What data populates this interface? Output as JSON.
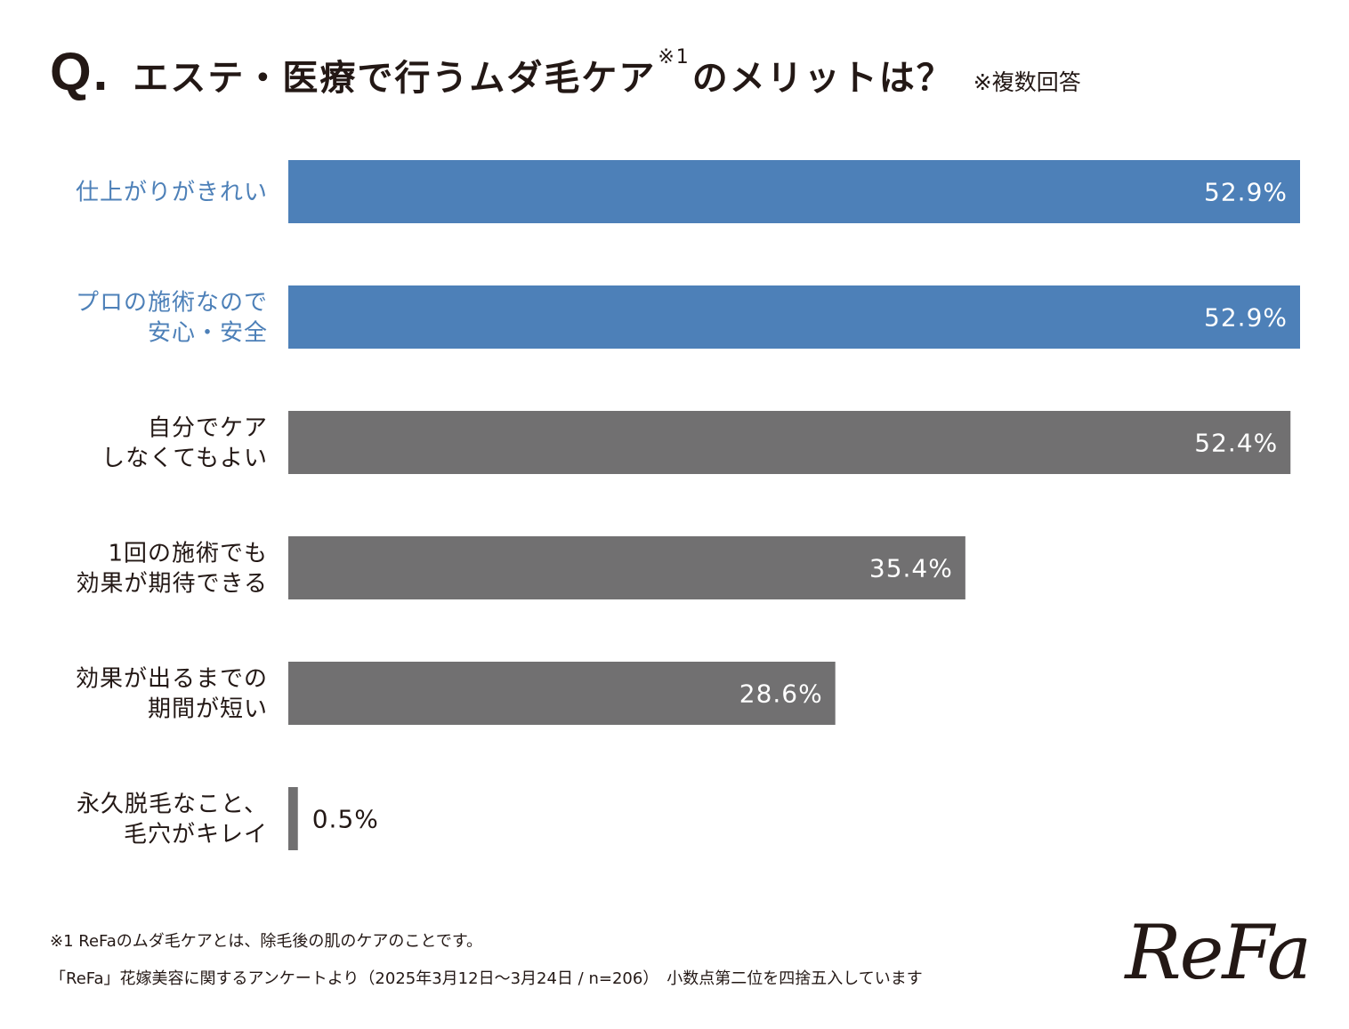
{
  "title": {
    "q_mark": "Q.",
    "text_before_note": "エステ・医療で行うムダ毛ケア",
    "note_mark": "※1",
    "text_after_note": "のメリットは？",
    "multiple_answers": "※複数回答"
  },
  "chart_data": {
    "type": "bar",
    "orientation": "horizontal",
    "categories": [
      [
        "仕上がりがきれい"
      ],
      [
        "プロの施術なので",
        "安心・安全"
      ],
      [
        "自分でケア",
        "しなくてもよい"
      ],
      [
        "1回の施術でも",
        "効果が期待できる"
      ],
      [
        "効果が出るまでの",
        "期間が短い"
      ],
      [
        "永久脱毛なこと、",
        "毛穴がキレイ"
      ]
    ],
    "values": [
      52.9,
      52.9,
      52.4,
      35.4,
      28.6,
      0.5
    ],
    "value_labels": [
      "52.9%",
      "52.9%",
      "52.4%",
      "35.4%",
      "28.6%",
      "0.5%"
    ],
    "highlighted": [
      true,
      true,
      false,
      false,
      false,
      false
    ],
    "xlim": [
      0,
      52.9
    ],
    "unit": "%"
  },
  "colors": {
    "highlight_bar": "#4d80b8",
    "normal_bar": "#717071",
    "highlight_label": "#4d80b8",
    "normal_label": "#231815",
    "inner_value": "#ffffff",
    "outer_value": "#231815"
  },
  "footer": {
    "note1": "※1  ReFaのムダ毛ケアとは、除毛後の肌のケアのことです。",
    "source": "「ReFa」花嫁美容に関するアンケートより（2025年3月12日〜3月24日 / n=206）　小数点第二位を四捨五入しています"
  },
  "logo": {
    "text": "ReFa"
  }
}
